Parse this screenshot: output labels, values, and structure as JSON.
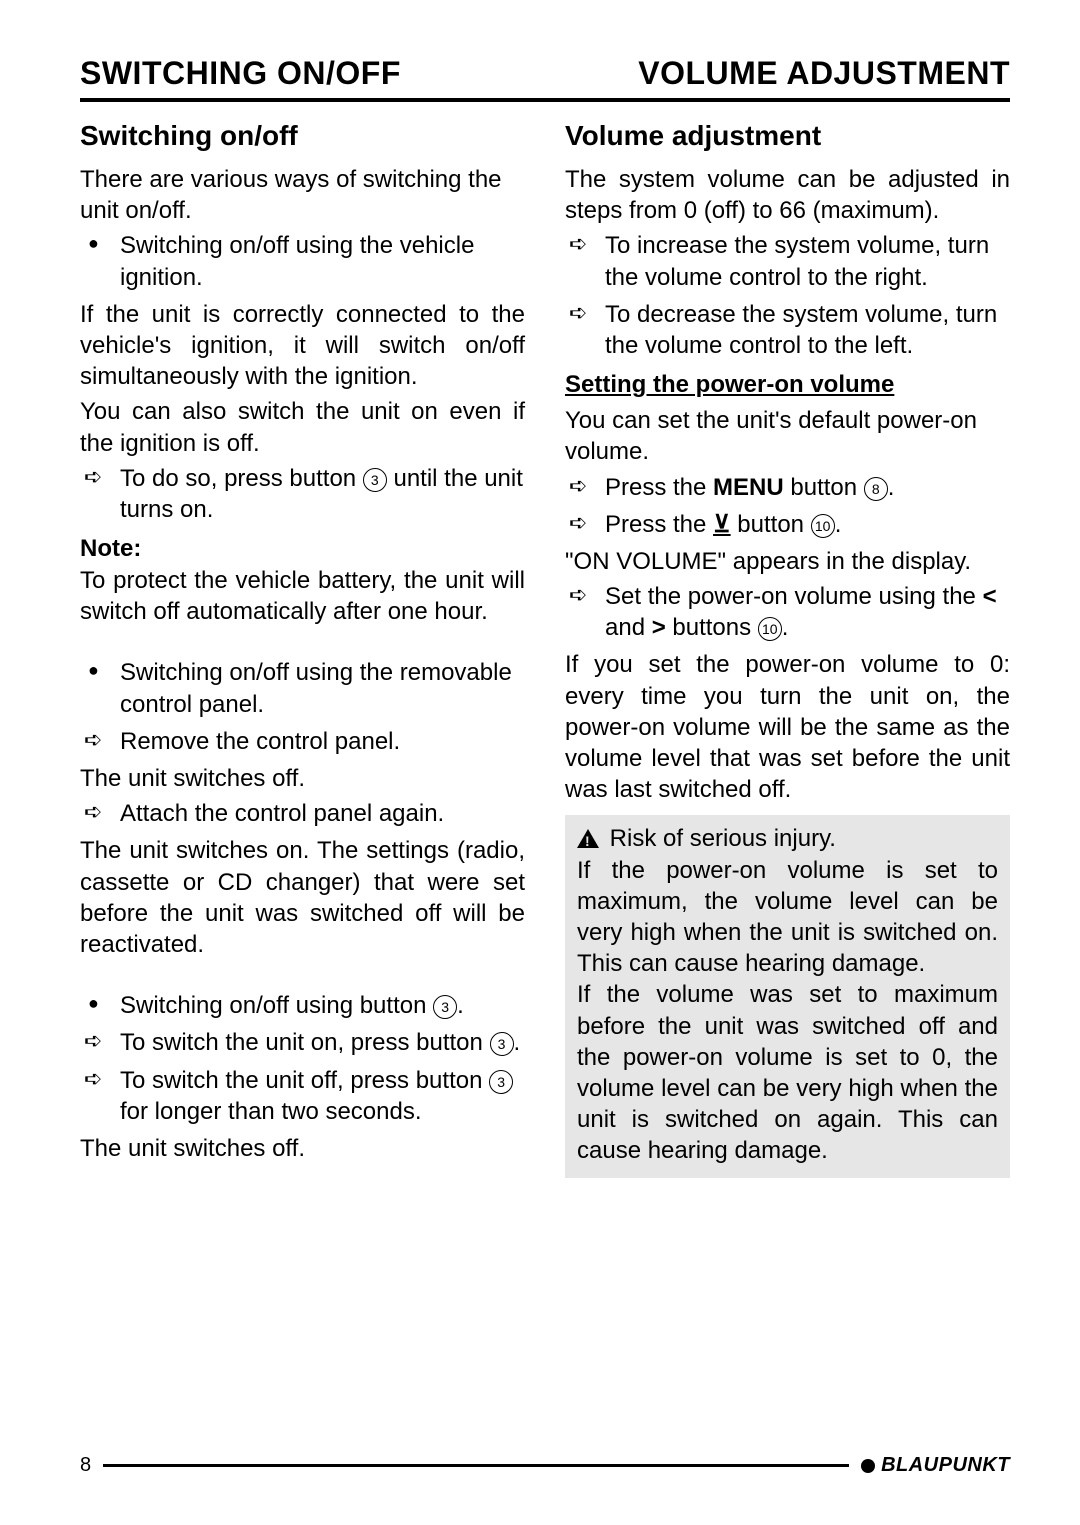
{
  "header": {
    "left": "SWITCHING ON/OFF",
    "right": "VOLUME ADJUSTMENT"
  },
  "left": {
    "heading": "Switching on/off",
    "p1": "There are various ways of switching the unit on/off.",
    "b1": "Switching on/off using the vehicle ignition.",
    "p2": "If the unit is correctly connected to the vehicle's ignition, it will switch on/off simultaneously with the ignition.",
    "p3": "You can also switch the unit on even if the ignition is off.",
    "a1a": "To do so, press button ",
    "a1b": " until the unit turns on.",
    "noteLabel": "Note:",
    "noteText": "To protect the vehicle battery, the unit will switch off automatically after one hour.",
    "b2": "Switching on/off using the removable control panel.",
    "a2": "Remove the control panel.",
    "p4": "The unit switches off.",
    "a3": "Attach the control panel again.",
    "p5": "The unit switches on. The settings (radio, cassette or CD changer) that were set before the unit was switched off will be reactivated.",
    "b3a": "Switching on/off using button ",
    "b3b": ".",
    "a4a": "To switch the unit on, press button ",
    "a4b": ".",
    "a5a": "To switch the unit off, press button ",
    "a5b": " for longer than two seconds.",
    "p6": "The unit switches off."
  },
  "right": {
    "heading": "Volume adjustment",
    "p1": "The system volume can be adjusted in steps from 0 (off) to 66 (maximum).",
    "a1": "To increase the system volume, turn the volume control to the right.",
    "a2": "To decrease the system volume, turn the volume control to the left.",
    "sub": "Setting the power-on volume",
    "p2": "You can set the unit's default power-on volume.",
    "a3a": "Press the ",
    "a3menu": "MENU",
    "a3b": " button ",
    "a3c": ".",
    "a4a": "Press the ",
    "a4v": "⊻",
    "a4b": " button ",
    "a4c": ".",
    "p3": "\"ON VOLUME\" appears in the display.",
    "a5a": "Set the power-on volume using the ",
    "a5lt": "<",
    "a5and": " and ",
    "a5gt": ">",
    "a5b": " buttons ",
    "a5c": ".",
    "p4": "If you set the power-on volume to 0: every time you turn the unit on, the power-on volume will be the same as the volume level that was set before the unit was last switched off.",
    "warnTitle": "Risk of serious injury.",
    "warnP1": "If the power-on volume is set to maximum, the volume level can be very high when the unit is switched on. This can cause hearing damage.",
    "warnP2": "If the volume was set to maximum before the unit was switched off and the power-on volume is set to 0, the volume level can be very high when the unit is switched on again. This can cause hearing damage."
  },
  "refs": {
    "n3": "3",
    "n8": "8",
    "n10": "10"
  },
  "footer": {
    "page": "8",
    "brand": "BLAUPUNKT"
  },
  "colors": {
    "text": "#000000",
    "bg": "#ffffff",
    "warnBg": "#e6e6e6"
  }
}
